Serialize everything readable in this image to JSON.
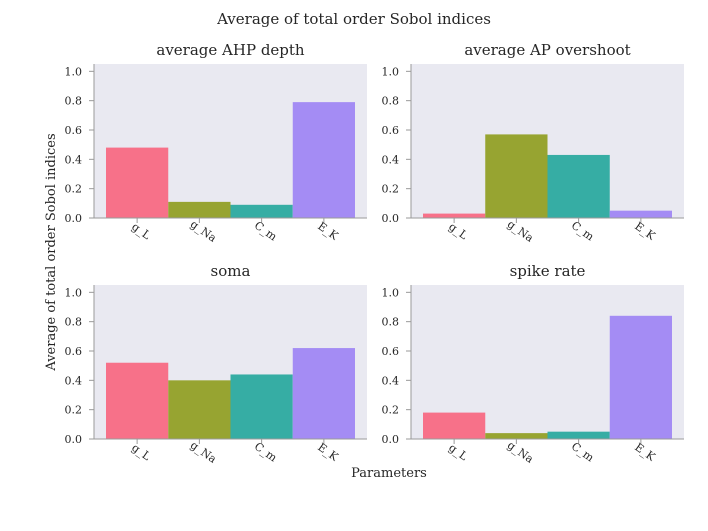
{
  "figure": {
    "suptitle": "Average of total order Sobol indices",
    "ylabel": "Average of total order Sobol indices",
    "xlabel": "Parameters"
  },
  "colors": [
    "#f77189",
    "#97a431",
    "#36ada4",
    "#a48cf4"
  ],
  "chart_data": [
    {
      "type": "bar",
      "title": "average AHP depth",
      "categories": [
        "g_L",
        "g_Na",
        "C_m",
        "E_K"
      ],
      "values": [
        0.48,
        0.11,
        0.09,
        0.79
      ],
      "ylim": [
        0,
        1.05
      ],
      "yticks": [
        "0.0",
        "0.2",
        "0.4",
        "0.6",
        "0.8",
        "1.0"
      ],
      "grid": false
    },
    {
      "type": "bar",
      "title": "average AP overshoot",
      "categories": [
        "g_L",
        "g_Na",
        "C_m",
        "E_K"
      ],
      "values": [
        0.03,
        0.57,
        0.43,
        0.05
      ],
      "ylim": [
        0,
        1.05
      ],
      "yticks": [
        "0.0",
        "0.2",
        "0.4",
        "0.6",
        "0.8",
        "1.0"
      ],
      "grid": false
    },
    {
      "type": "bar",
      "title": "soma",
      "categories": [
        "g_L",
        "g_Na",
        "C_m",
        "E_K"
      ],
      "values": [
        0.52,
        0.4,
        0.44,
        0.62
      ],
      "ylim": [
        0,
        1.05
      ],
      "yticks": [
        "0.0",
        "0.2",
        "0.4",
        "0.6",
        "0.8",
        "1.0"
      ],
      "grid": false
    },
    {
      "type": "bar",
      "title": "spike rate",
      "categories": [
        "g_L",
        "g_Na",
        "C_m",
        "E_K"
      ],
      "values": [
        0.18,
        0.04,
        0.05,
        0.84
      ],
      "ylim": [
        0,
        1.05
      ],
      "yticks": [
        "0.0",
        "0.2",
        "0.4",
        "0.6",
        "0.8",
        "1.0"
      ],
      "grid": false
    }
  ]
}
